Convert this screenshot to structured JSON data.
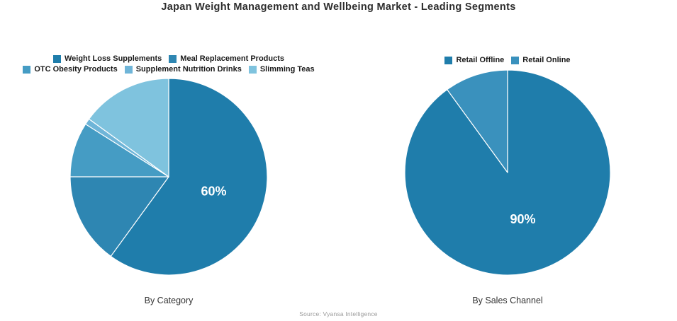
{
  "title": "Japan Weight Management and Wellbeing Market - Leading Segments",
  "footer": {
    "source": "Source: Vyansa Intelligence"
  },
  "colors": {
    "background": "#ffffff",
    "slice_divider": "#ffffff",
    "slice_label": "#ffffff"
  },
  "chart_data": [
    {
      "type": "pie",
      "caption": "By Category",
      "legend_position": "top",
      "start_angle": "top",
      "direction": "clockwise",
      "slices": [
        {
          "label": "Weight Loss Supplements",
          "value": 60,
          "color": "#1f7dab",
          "value_label": "60%"
        },
        {
          "label": "Meal Replacement Products",
          "value": 15,
          "color": "#2e86b2",
          "value_label": ""
        },
        {
          "label": "OTC Obesity Products",
          "value": 9,
          "color": "#459cc4",
          "value_label": ""
        },
        {
          "label": "Supplement Nutrition Drinks",
          "value": 1,
          "color": "#6fb5d8",
          "value_label": ""
        },
        {
          "label": "Slimming Teas",
          "value": 15,
          "color": "#7fc3de",
          "value_label": ""
        }
      ]
    },
    {
      "type": "pie",
      "caption": "By Sales Channel",
      "legend_position": "top",
      "start_angle": "top",
      "direction": "clockwise",
      "slices": [
        {
          "label": "Retail Offline",
          "value": 90,
          "color": "#1f7dab",
          "value_label": "90%"
        },
        {
          "label": "Retail Online",
          "value": 10,
          "color": "#3a91bd",
          "value_label": ""
        }
      ]
    }
  ]
}
